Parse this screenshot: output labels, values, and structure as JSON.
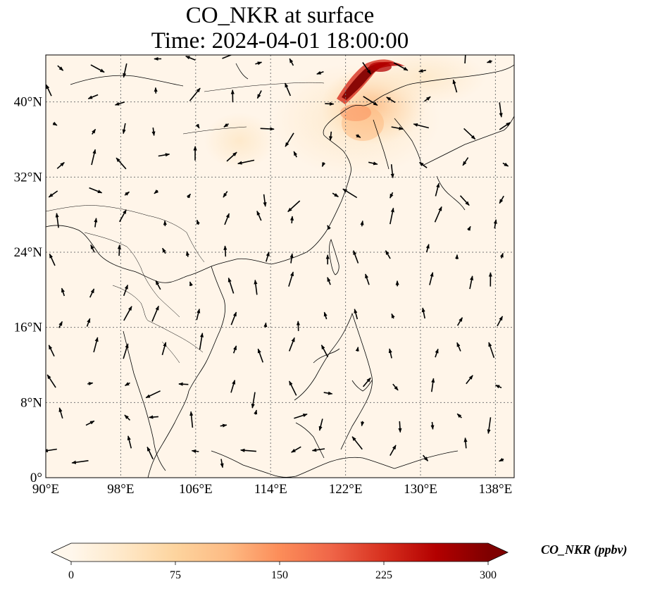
{
  "title": {
    "line1": "CO_NKR at surface",
    "line2": "Time: 2024-04-01 18:00:00"
  },
  "map": {
    "extent": {
      "lon_min": 90,
      "lon_max": 140,
      "lat_min": 0,
      "lat_max": 45
    },
    "lon_ticks": [
      90,
      98,
      106,
      114,
      122,
      130,
      138
    ],
    "lon_tick_labels": [
      "90°E",
      "98°E",
      "106°E",
      "114°E",
      "122°E",
      "130°E",
      "138°E"
    ],
    "lat_ticks": [
      0,
      8,
      16,
      24,
      32,
      40
    ],
    "lat_tick_labels": [
      "0°",
      "8°N",
      "16°N",
      "24°N",
      "32°N",
      "40°N"
    ],
    "gridlines": true,
    "coastlines": true,
    "wind_vectors": true
  },
  "colorbar": {
    "label": "CO_NKR (ppbv)",
    "min": 0,
    "max": 300,
    "ticks": [
      0,
      75,
      150,
      225,
      300
    ],
    "tick_labels": [
      "0",
      "75",
      "150",
      "225",
      "300"
    ],
    "colormap": "OrRd",
    "extend": "both",
    "colors": [
      "#fff7ec",
      "#fee8c8",
      "#fdd49e",
      "#fdbb84",
      "#fc8d59",
      "#ef6548",
      "#d7301f",
      "#b30000",
      "#7f0000"
    ]
  }
}
